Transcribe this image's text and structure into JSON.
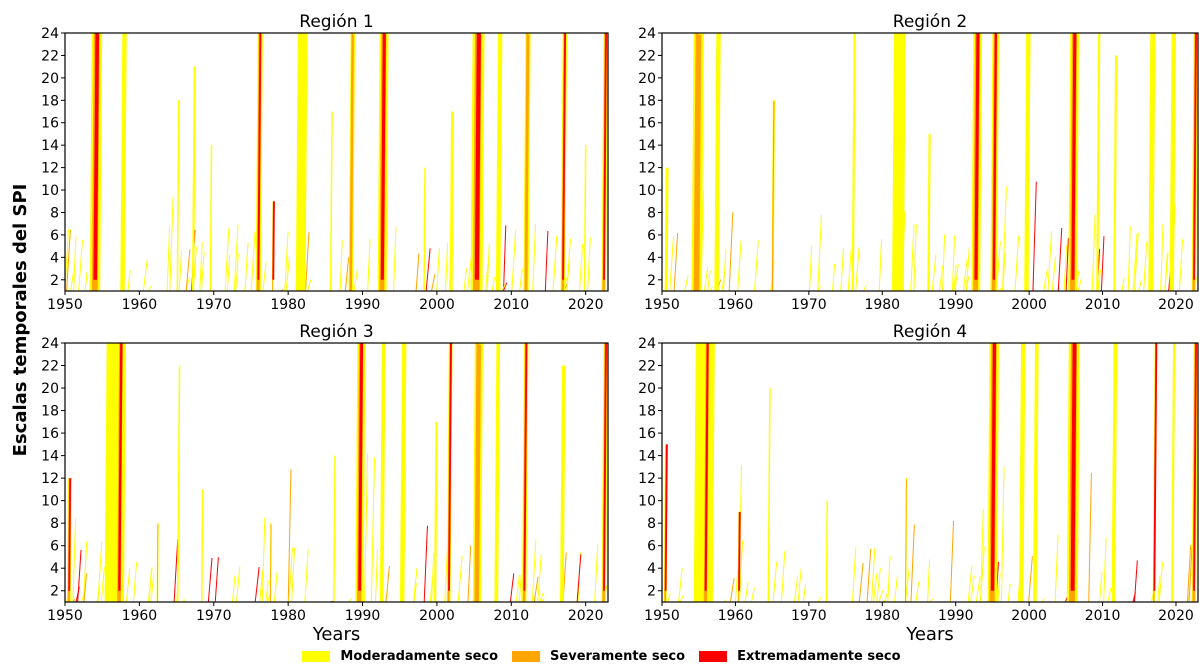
{
  "chart_data": {
    "type": "heatmap",
    "ylabel": "Escalas temporales del SPI",
    "xlabel": "Years",
    "xlim": [
      1950,
      2023
    ],
    "ylim": [
      1,
      24
    ],
    "xticks": [
      1950,
      1960,
      1970,
      1980,
      1990,
      2000,
      2010,
      2020
    ],
    "yticks": [
      2,
      4,
      6,
      8,
      10,
      12,
      14,
      16,
      18,
      20,
      22,
      24
    ],
    "legend_position": "bottom-center",
    "categories": [
      {
        "name": "Moderadamente seco",
        "color": "#ffff00"
      },
      {
        "name": "Severamente seco",
        "color": "#ffa500"
      },
      {
        "name": "Extremadamente seco",
        "color": "#ff0000"
      }
    ],
    "panels": [
      {
        "title": "Región 1",
        "show_xlabel": false,
        "episodes": [
          {
            "x": 1953.6,
            "w": 1.4,
            "top": 24,
            "sev": 3
          },
          {
            "x": 1957.7,
            "w": 0.6,
            "top": 24,
            "sev": 1
          },
          {
            "x": 1965.2,
            "w": 0.2,
            "top": 18,
            "sev": 1
          },
          {
            "x": 1967.3,
            "w": 0.3,
            "top": 21,
            "sev": 1
          },
          {
            "x": 1969.6,
            "w": 0.2,
            "top": 14,
            "sev": 1
          },
          {
            "x": 1975.9,
            "w": 0.7,
            "top": 24,
            "sev": 3
          },
          {
            "x": 1977.9,
            "w": 0.2,
            "top": 9,
            "sev": 3
          },
          {
            "x": 1981.3,
            "w": 1.3,
            "top": 24,
            "sev": 1
          },
          {
            "x": 1985.8,
            "w": 0.2,
            "top": 17,
            "sev": 1
          },
          {
            "x": 1988.4,
            "w": 0.6,
            "top": 24,
            "sev": 2
          },
          {
            "x": 1992.3,
            "w": 1.2,
            "top": 24,
            "sev": 3
          },
          {
            "x": 1998.3,
            "w": 0.2,
            "top": 12,
            "sev": 1
          },
          {
            "x": 2001.9,
            "w": 0.4,
            "top": 17,
            "sev": 1
          },
          {
            "x": 2004.8,
            "w": 1.6,
            "top": 24,
            "sev": 3
          },
          {
            "x": 2008.2,
            "w": 0.6,
            "top": 24,
            "sev": 1
          },
          {
            "x": 2011.9,
            "w": 0.7,
            "top": 24,
            "sev": 2
          },
          {
            "x": 2016.9,
            "w": 0.6,
            "top": 24,
            "sev": 3
          },
          {
            "x": 2019.9,
            "w": 0.2,
            "top": 14,
            "sev": 1
          },
          {
            "x": 2022.4,
            "w": 0.6,
            "top": 24,
            "sev": 3
          }
        ]
      },
      {
        "title": "Región 2",
        "show_xlabel": false,
        "episodes": [
          {
            "x": 1950.5,
            "w": 0.4,
            "top": 12,
            "sev": 1
          },
          {
            "x": 1954.3,
            "w": 1.4,
            "top": 24,
            "sev": 2
          },
          {
            "x": 1957.4,
            "w": 0.6,
            "top": 24,
            "sev": 1
          },
          {
            "x": 1965.1,
            "w": 0.3,
            "top": 18,
            "sev": 2
          },
          {
            "x": 1976.1,
            "w": 0.3,
            "top": 24,
            "sev": 1
          },
          {
            "x": 1981.6,
            "w": 1.6,
            "top": 24,
            "sev": 1
          },
          {
            "x": 1986.3,
            "w": 0.3,
            "top": 15,
            "sev": 1
          },
          {
            "x": 1992.4,
            "w": 1.2,
            "top": 24,
            "sev": 3
          },
          {
            "x": 1995.0,
            "w": 0.9,
            "top": 24,
            "sev": 3
          },
          {
            "x": 1999.6,
            "w": 0.6,
            "top": 24,
            "sev": 1
          },
          {
            "x": 2005.6,
            "w": 1.2,
            "top": 24,
            "sev": 3
          },
          {
            "x": 2009.4,
            "w": 0.3,
            "top": 24,
            "sev": 1
          },
          {
            "x": 2011.7,
            "w": 0.3,
            "top": 22,
            "sev": 1
          },
          {
            "x": 2016.5,
            "w": 0.7,
            "top": 24,
            "sev": 1
          },
          {
            "x": 2019.4,
            "w": 0.6,
            "top": 24,
            "sev": 1
          },
          {
            "x": 2022.4,
            "w": 0.6,
            "top": 24,
            "sev": 3
          }
        ]
      },
      {
        "title": "Región 3",
        "show_xlabel": true,
        "episodes": [
          {
            "x": 1950.4,
            "w": 0.5,
            "top": 12,
            "sev": 3
          },
          {
            "x": 1955.6,
            "w": 2.6,
            "top": 24,
            "sev": 1
          },
          {
            "x": 1957.1,
            "w": 0.9,
            "top": 24,
            "sev": 3
          },
          {
            "x": 1962.4,
            "w": 0.2,
            "top": 8,
            "sev": 2
          },
          {
            "x": 1965.3,
            "w": 0.2,
            "top": 22,
            "sev": 1
          },
          {
            "x": 1968.4,
            "w": 0.2,
            "top": 11,
            "sev": 1
          },
          {
            "x": 1977.6,
            "w": 0.2,
            "top": 8,
            "sev": 2
          },
          {
            "x": 1986.2,
            "w": 0.2,
            "top": 14,
            "sev": 1
          },
          {
            "x": 1989.3,
            "w": 1.1,
            "top": 24,
            "sev": 3
          },
          {
            "x": 1992.6,
            "w": 0.5,
            "top": 24,
            "sev": 1
          },
          {
            "x": 1995.3,
            "w": 0.6,
            "top": 24,
            "sev": 1
          },
          {
            "x": 1999.8,
            "w": 0.3,
            "top": 17,
            "sev": 1
          },
          {
            "x": 2001.6,
            "w": 0.5,
            "top": 24,
            "sev": 3
          },
          {
            "x": 2005.1,
            "w": 1.1,
            "top": 24,
            "sev": 2
          },
          {
            "x": 2008.0,
            "w": 0.5,
            "top": 24,
            "sev": 1
          },
          {
            "x": 2011.7,
            "w": 0.6,
            "top": 24,
            "sev": 3
          },
          {
            "x": 2016.8,
            "w": 0.5,
            "top": 22,
            "sev": 1
          },
          {
            "x": 2022.4,
            "w": 0.6,
            "top": 24,
            "sev": 3
          }
        ]
      },
      {
        "title": "Región 4",
        "show_xlabel": true,
        "episodes": [
          {
            "x": 1950.4,
            "w": 0.4,
            "top": 15,
            "sev": 3
          },
          {
            "x": 1954.6,
            "w": 2.6,
            "top": 24,
            "sev": 1
          },
          {
            "x": 1955.8,
            "w": 0.8,
            "top": 24,
            "sev": 3
          },
          {
            "x": 1960.4,
            "w": 0.2,
            "top": 9,
            "sev": 3
          },
          {
            "x": 1964.6,
            "w": 0.2,
            "top": 20,
            "sev": 1
          },
          {
            "x": 1972.4,
            "w": 0.2,
            "top": 10,
            "sev": 1
          },
          {
            "x": 1983.2,
            "w": 0.2,
            "top": 12,
            "sev": 2
          },
          {
            "x": 1994.6,
            "w": 1.3,
            "top": 24,
            "sev": 3
          },
          {
            "x": 1998.9,
            "w": 0.6,
            "top": 24,
            "sev": 1
          },
          {
            "x": 2000.8,
            "w": 0.5,
            "top": 24,
            "sev": 1
          },
          {
            "x": 2005.4,
            "w": 1.5,
            "top": 24,
            "sev": 3
          },
          {
            "x": 2011.5,
            "w": 0.5,
            "top": 24,
            "sev": 1
          },
          {
            "x": 2017.1,
            "w": 0.3,
            "top": 24,
            "sev": 3
          },
          {
            "x": 2019.6,
            "w": 0.3,
            "top": 24,
            "sev": 1
          },
          {
            "x": 2022.4,
            "w": 0.6,
            "top": 24,
            "sev": 3
          }
        ]
      }
    ]
  }
}
